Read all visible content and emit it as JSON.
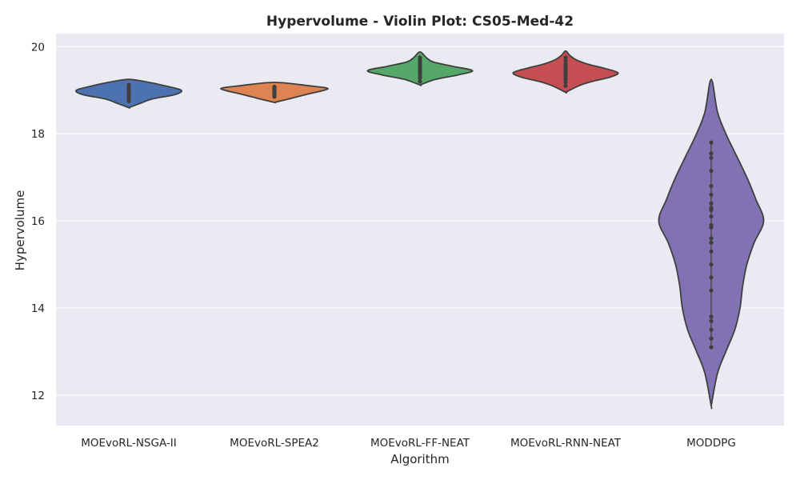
{
  "chart_data": {
    "type": "violin",
    "title": "Hypervolume - Violin Plot: CS05-Med-42",
    "xlabel": "Algorithm",
    "ylabel": "Hypervolume",
    "ylim": [
      11.3,
      20.3
    ],
    "yticks": [
      12,
      14,
      16,
      18,
      20
    ],
    "grid": true,
    "legend": "none",
    "categories": [
      "MOEvoRL-NSGA-II",
      "MOEvoRL-SPEA2",
      "MOEvoRL-FF-NEAT",
      "MOEvoRL-RNN-NEAT",
      "MODDPG"
    ],
    "series": [
      {
        "color": "#4c72b0",
        "points": [
          18.75,
          18.78,
          18.82,
          18.86,
          18.9,
          18.93,
          18.95,
          18.98,
          19.0,
          19.02,
          19.05,
          19.08,
          19.12
        ],
        "density_y": [
          18.6,
          18.7,
          18.8,
          18.9,
          19.0,
          19.1,
          19.2,
          19.25
        ],
        "density_w": [
          0.0,
          0.22,
          0.45,
          0.88,
          1.0,
          0.7,
          0.3,
          0.0
        ]
      },
      {
        "color": "#dd8452",
        "points": [
          18.85,
          18.88,
          18.9,
          18.93,
          18.95,
          18.98,
          19.0,
          19.03,
          19.06,
          19.08
        ],
        "density_y": [
          18.72,
          18.8,
          18.9,
          19.0,
          19.05,
          19.1,
          19.18
        ],
        "density_w": [
          0.0,
          0.28,
          0.6,
          0.95,
          1.0,
          0.68,
          0.0
        ]
      },
      {
        "color": "#55a868",
        "points": [
          19.2,
          19.28,
          19.32,
          19.38,
          19.42,
          19.45,
          19.5,
          19.55,
          19.6,
          19.65,
          19.7,
          19.75
        ],
        "density_y": [
          19.12,
          19.25,
          19.35,
          19.45,
          19.55,
          19.65,
          19.75,
          19.88
        ],
        "density_w": [
          0.0,
          0.3,
          0.72,
          1.0,
          0.62,
          0.25,
          0.12,
          0.0
        ]
      },
      {
        "color": "#c44e52",
        "points": [
          19.1,
          19.18,
          19.25,
          19.3,
          19.35,
          19.4,
          19.45,
          19.5,
          19.55,
          19.6,
          19.68,
          19.75
        ],
        "density_y": [
          18.95,
          19.1,
          19.2,
          19.3,
          19.4,
          19.5,
          19.6,
          19.7,
          19.8,
          19.9
        ],
        "density_w": [
          0.0,
          0.25,
          0.5,
          0.85,
          1.0,
          0.75,
          0.42,
          0.2,
          0.08,
          0.0
        ]
      },
      {
        "color": "#8172b3",
        "points": [
          13.1,
          13.3,
          13.5,
          13.7,
          13.8,
          14.4,
          14.7,
          15.0,
          15.3,
          15.5,
          15.6,
          15.85,
          15.9,
          16.1,
          16.25,
          16.3,
          16.4,
          16.6,
          16.8,
          17.15,
          17.45,
          17.55,
          17.8
        ],
        "density_y": [
          11.75,
          12.5,
          13.0,
          13.5,
          14.0,
          14.5,
          15.0,
          15.5,
          16.0,
          16.5,
          17.0,
          17.5,
          18.0,
          18.5,
          19.25
        ],
        "density_w": [
          0.0,
          0.12,
          0.28,
          0.45,
          0.55,
          0.6,
          0.68,
          0.82,
          1.0,
          0.85,
          0.68,
          0.48,
          0.28,
          0.12,
          0.0
        ]
      }
    ]
  }
}
